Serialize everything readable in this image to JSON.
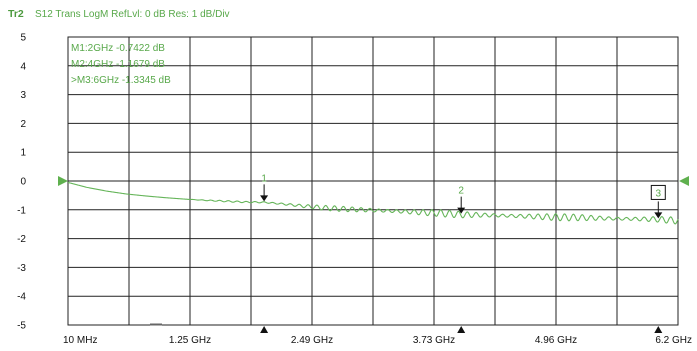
{
  "header": {
    "trace": "Tr2",
    "measurement": "S12 Trans LogM RefLvl: 0  dB Res: 1  dB/Div"
  },
  "markers": {
    "readouts": [
      "M1:2GHz  -0.7422  dB",
      "M2:4GHz  -1.1679  dB",
      ">M3:6GHz  -1.3345  dB"
    ],
    "labels": [
      "1",
      "2",
      "3"
    ]
  },
  "colors": {
    "trace": "#66b55a",
    "text": "#58a84a",
    "grid": "#222222",
    "reference_arrow": "#5fb04e"
  },
  "chart_data": {
    "type": "line",
    "title": "",
    "xlabel": "",
    "ylabel": "",
    "x_unit": "GHz",
    "xlim": [
      0.01,
      6.2
    ],
    "ylim": [
      -5,
      5
    ],
    "grid": true,
    "reference_level": 0,
    "y_ticks": [
      "5",
      "4",
      "3",
      "2",
      "1",
      "0",
      "-1",
      "-2",
      "-3",
      "-4",
      "-5"
    ],
    "x_ticks": [
      {
        "label": "10 MHz",
        "value": 0.01
      },
      {
        "label": "1.25 GHz",
        "value": 1.248
      },
      {
        "label": "2.49 GHz",
        "value": 2.486
      },
      {
        "label": "3.73 GHz",
        "value": 3.724
      },
      {
        "label": "4.96 GHz",
        "value": 4.962
      },
      {
        "label": "6.2 GHz",
        "value": 6.2
      }
    ],
    "series": [
      {
        "x": [
          0.01,
          0.2,
          0.4,
          0.6,
          0.8,
          1.0,
          1.2,
          1.4,
          1.6,
          1.8,
          2.0,
          2.2,
          2.4,
          2.6,
          2.8,
          3.0,
          3.2,
          3.4,
          3.6,
          3.8,
          4.0,
          4.2,
          4.4,
          4.6,
          4.8,
          5.0,
          5.2,
          5.4,
          5.6,
          5.8,
          6.0,
          6.2
        ],
        "y": [
          -0.05,
          -0.22,
          -0.35,
          -0.45,
          -0.52,
          -0.58,
          -0.63,
          -0.67,
          -0.7,
          -0.73,
          -0.74,
          -0.8,
          -0.87,
          -0.93,
          -0.97,
          -1.0,
          -1.03,
          -1.06,
          -1.09,
          -1.12,
          -1.17,
          -1.18,
          -1.2,
          -1.22,
          -1.24,
          -1.26,
          -1.27,
          -1.29,
          -1.31,
          -1.32,
          -1.33,
          -1.38
        ]
      }
    ],
    "marker_points": [
      {
        "label": "1",
        "x": 2.0,
        "y": -0.7422
      },
      {
        "label": "2",
        "x": 4.0,
        "y": -1.1679
      },
      {
        "label": "3",
        "x": 6.0,
        "y": -1.3345
      }
    ],
    "active_marker": "3"
  }
}
